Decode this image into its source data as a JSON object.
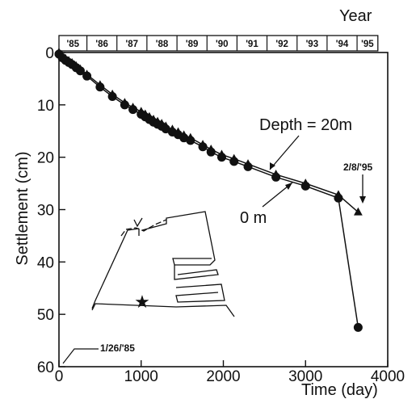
{
  "chart_data": {
    "type": "line",
    "xlabel": "Time (day)",
    "ylabel": "Settlement (cm)",
    "top_axis_label": "Year",
    "xlim": [
      0,
      4000
    ],
    "ylim": [
      0,
      60
    ],
    "y_inverted": true,
    "xticks": [
      0,
      1000,
      2000,
      3000,
      4000
    ],
    "yticks": [
      0,
      10,
      20,
      30,
      40,
      50,
      60
    ],
    "top_year_labels": [
      "'85",
      "'86",
      "'87",
      "'88",
      "'89",
      "'90",
      "'91",
      "'92",
      "'93",
      "'94",
      "'95"
    ],
    "top_year_edges_day": [
      0,
      340,
      705,
      1070,
      1436,
      1801,
      2166,
      2531,
      2897,
      3262,
      3627,
      3880
    ],
    "grid": false,
    "series": [
      {
        "name": "Depth = 20m",
        "marker": "triangle",
        "x": [
          0,
          40,
          80,
          120,
          160,
          210,
          260,
          340,
          500,
          650,
          800,
          900,
          1000,
          1050,
          1100,
          1150,
          1200,
          1250,
          1300,
          1380,
          1450,
          1520,
          1600,
          1750,
          1850,
          1980,
          2130,
          2300,
          2640,
          3000,
          3400,
          3640
        ],
        "y": [
          0,
          0.7,
          1.2,
          1.6,
          2.0,
          2.6,
          3.2,
          4.2,
          6.2,
          8.0,
          9.6,
          10.5,
          11.3,
          11.8,
          12.3,
          12.8,
          13.2,
          13.6,
          14.1,
          14.7,
          15.2,
          15.8,
          16.3,
          17.6,
          18.5,
          19.5,
          20.3,
          21.3,
          23.3,
          25.0,
          27.2,
          30.5
        ]
      },
      {
        "name": "0 m",
        "marker": "circle",
        "x": [
          0,
          40,
          80,
          120,
          160,
          210,
          260,
          340,
          500,
          650,
          800,
          900,
          1000,
          1050,
          1100,
          1150,
          1200,
          1250,
          1300,
          1380,
          1450,
          1520,
          1600,
          1750,
          1850,
          1980,
          2130,
          2300,
          2640,
          3000,
          3400,
          3640
        ],
        "y": [
          0.3,
          1.0,
          1.5,
          1.9,
          2.3,
          2.9,
          3.5,
          4.5,
          6.6,
          8.4,
          10.0,
          10.9,
          11.8,
          12.3,
          12.8,
          13.3,
          13.7,
          14.1,
          14.6,
          15.2,
          15.7,
          16.3,
          16.8,
          18.0,
          19.0,
          20.0,
          20.8,
          21.8,
          23.8,
          25.5,
          27.8,
          52.5
        ]
      }
    ],
    "annotations": {
      "depth_label": "Depth = 20m",
      "zero_label": "0 m",
      "date_end": "2/8/'95",
      "date_start": "1/26/'85"
    },
    "inset_marker": "★"
  }
}
